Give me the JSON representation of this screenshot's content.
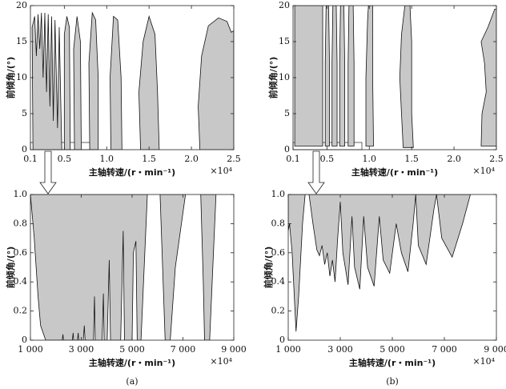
{
  "chart_data": [
    {
      "type": "area",
      "xlabel": "主轴转速/(r・min⁻¹)",
      "ylabel": "前倾角/(°)",
      "scale_label": "×10⁴",
      "color": "#c8c8c8",
      "xlim": [
        0.1,
        2.5
      ],
      "ylim": [
        0,
        20
      ],
      "xticks": [
        0.1,
        0.5,
        {
          "value": 1,
          "label": "1.0"
        },
        1.5,
        {
          "value": 2,
          "label": "2.0"
        },
        2.5
      ],
      "yticks": [
        0,
        5,
        10,
        15,
        20
      ],
      "lobes": [
        {
          "x": [
            0.13,
            0.12,
            0.15,
            0.17,
            0.19,
            0.21,
            0.23,
            0.25,
            0.27,
            0.29,
            0.31,
            0.33,
            0.35,
            0.37,
            0.39,
            0.42,
            0.44,
            0.47
          ],
          "y": [
            0,
            17,
            18.5,
            13,
            18.8,
            14,
            19,
            10,
            19,
            8,
            18.8,
            6,
            18.5,
            4,
            18,
            3,
            17,
            0
          ]
        },
        {
          "x": [
            0.5,
            0.5,
            0.53,
            0.56,
            0.57
          ],
          "y": [
            0,
            16,
            18.5,
            17,
            0
          ]
        },
        {
          "x": [
            0.62,
            0.61,
            0.65,
            0.69,
            0.7
          ],
          "y": [
            0,
            14,
            18.5,
            15,
            0
          ]
        },
        {
          "x": [
            0.8,
            0.79,
            0.83,
            0.87,
            0.9,
            0.9
          ],
          "y": [
            0,
            12,
            19,
            18,
            10,
            0
          ]
        },
        {
          "x": [
            1.05,
            1.04,
            1.08,
            1.13,
            1.17,
            1.18
          ],
          "y": [
            0,
            10,
            18.5,
            18,
            10,
            0
          ]
        },
        {
          "x": [
            1.4,
            1.38,
            1.43,
            1.5,
            1.57,
            1.6,
            1.62
          ],
          "y": [
            0,
            8,
            15,
            18.5,
            16,
            8,
            0
          ]
        },
        {
          "x": [
            2.1,
            2.08,
            2.12,
            2.2,
            2.32,
            2.42,
            2.47,
            2.5,
            2.5
          ],
          "y": [
            0,
            6,
            13,
            17.2,
            18.3,
            17.8,
            16.3,
            16.5,
            0
          ]
        }
      ]
    },
    {
      "type": "area",
      "xlabel": "主轴转速/(r・min⁻¹)",
      "ylabel": "前倾角/(°)",
      "scale_label": "×10⁴",
      "color": "#c8c8c8",
      "xlim": [
        0.1,
        2.5
      ],
      "ylim": [
        0,
        20
      ],
      "xticks": [
        0.1,
        0.5,
        {
          "value": 1,
          "label": "1.0"
        },
        1.5,
        {
          "value": 2,
          "label": "2.0"
        },
        2.5
      ],
      "yticks": [
        0,
        5,
        10,
        15,
        20
      ],
      "lobes": [
        {
          "x": [
            0.12,
            0.12,
            0.45,
            0.45
          ],
          "y": [
            0.5,
            20,
            20,
            0.5
          ]
        },
        {
          "x": [
            0.48,
            0.48,
            0.49,
            0.52,
            0.53,
            0.53
          ],
          "y": [
            0.5,
            12,
            20,
            20,
            12,
            0.5
          ]
        },
        {
          "x": [
            0.56,
            0.56,
            0.57,
            0.61,
            0.62,
            0.62
          ],
          "y": [
            0.5,
            12,
            20,
            20,
            12,
            0.5
          ]
        },
        {
          "x": [
            0.65,
            0.65,
            0.66,
            0.7,
            0.71,
            0.71
          ],
          "y": [
            0.5,
            12,
            20,
            20,
            12,
            0.5
          ]
        },
        {
          "x": [
            0.75,
            0.75,
            0.76,
            0.81,
            0.82,
            0.82
          ],
          "y": [
            0.5,
            12,
            20,
            20,
            12,
            0.5
          ]
        },
        {
          "x": [
            0.96,
            0.96,
            0.98,
            0.99,
            1.04,
            1.04,
            1.05
          ],
          "y": [
            0.5,
            10,
            18,
            20,
            20,
            10,
            0.5
          ]
        },
        {
          "x": [
            1.4,
            1.38,
            1.36,
            1.38,
            1.42,
            1.48,
            1.5,
            1.5,
            1.52
          ],
          "y": [
            0.3,
            5,
            10,
            16,
            20,
            20,
            15,
            5,
            0.3
          ]
        },
        {
          "x": [
            2.32,
            2.33,
            2.38,
            2.36,
            2.32,
            2.4,
            2.48,
            2.5,
            2.5
          ],
          "y": [
            0.5,
            5,
            8,
            12,
            15,
            17,
            19.5,
            19.5,
            0.5
          ]
        }
      ]
    },
    {
      "type": "area",
      "xlabel": "主轴转速/(r・min⁻¹)",
      "ylabel": "前倾角/(°)",
      "scale_label": "×10⁴",
      "caption": "(a)",
      "color": "#c8c8c8",
      "xlim": [
        1000,
        9000
      ],
      "ylim": [
        0,
        1
      ],
      "xticks": [
        {
          "value": 1000,
          "label": "1 000"
        },
        {
          "value": 3000,
          "label": "3 000"
        },
        {
          "value": 5000,
          "label": "5 000"
        },
        {
          "value": 7000,
          "label": "7 000"
        },
        {
          "value": 9000,
          "label": "9 000"
        }
      ],
      "yticks": [
        0,
        0.2,
        0.4,
        0.6,
        0.8,
        {
          "value": 1,
          "label": "1.0"
        }
      ],
      "lobes": [
        {
          "x": [
            1000,
            5600,
            5500,
            5350,
            5200,
            5150,
            5050,
            5000,
            4700,
            4650,
            4550,
            4150,
            4100,
            4020,
            3900,
            3870,
            3820,
            3550,
            3520,
            3480,
            3150,
            3120,
            3080,
            2900,
            2880,
            2850,
            2700,
            2680,
            2650,
            2300,
            2280,
            2250,
            1600,
            1400,
            1300,
            1150
          ],
          "y": [
            1,
            1,
            0.6,
            0,
            0,
            0.68,
            0.6,
            0,
            0,
            0.75,
            0,
            0,
            0.55,
            0,
            0,
            0.32,
            0,
            0,
            0.3,
            0,
            0,
            0.1,
            0,
            0,
            0.05,
            0,
            0,
            0.05,
            0,
            0,
            0.04,
            0,
            0,
            0.1,
            0.3,
            0.7
          ]
        },
        {
          "x": [
            6100,
            6200,
            6300,
            6500,
            6700,
            7100
          ],
          "y": [
            1,
            0.5,
            0,
            0,
            0.5,
            1
          ]
        },
        {
          "x": [
            7700,
            7800,
            7850,
            8050,
            8150,
            8300
          ],
          "y": [
            1,
            0.4,
            0,
            0,
            0.4,
            1
          ]
        }
      ]
    },
    {
      "type": "area",
      "xlabel": "主轴转速/(r・min⁻¹)",
      "ylabel": "前倾角/(°)",
      "scale_label": "×10⁴",
      "caption": "(b)",
      "color": "#c8c8c8",
      "xlim": [
        1000,
        9000
      ],
      "ylim": [
        0,
        1
      ],
      "xticks": [
        {
          "value": 1000,
          "label": "1 000"
        },
        {
          "value": 3000,
          "label": "3 000"
        },
        {
          "value": 5000,
          "label": "5 000"
        },
        {
          "value": 7000,
          "label": "7 000"
        },
        {
          "value": 9000,
          "label": "9 000"
        }
      ],
      "yticks": [
        0,
        0.2,
        0.4,
        0.6,
        0.8,
        {
          "value": 1,
          "label": "1.0"
        }
      ],
      "lobes": [
        {
          "x": [
            1000,
            1000,
            1050,
            1150,
            1300,
            1400,
            1550,
            1650,
            1800,
            1950,
            2100,
            2200,
            2300,
            2400,
            2500,
            2600,
            2700,
            2800,
            2900,
            3000,
            3100,
            3300,
            3450,
            3550,
            3750,
            3900,
            4050,
            4300,
            4500,
            4650,
            4900,
            5150,
            5350,
            5600,
            5800,
            5900,
            6000,
            6300,
            6600,
            6700,
            6900,
            7300,
            7700,
            8000
          ],
          "y": [
            1,
            0.75,
            0.8,
            0.6,
            0.06,
            0.3,
            0.8,
            1,
            1,
            0.8,
            0.62,
            0.58,
            0.65,
            0.52,
            0.6,
            0.44,
            0.55,
            0.4,
            0.7,
            0.95,
            0.6,
            0.38,
            0.85,
            0.5,
            0.35,
            0.85,
            0.5,
            0.37,
            0.85,
            0.55,
            0.46,
            0.8,
            0.6,
            0.47,
            0.8,
            1,
            0.65,
            0.52,
            0.9,
            1,
            0.7,
            0.57,
            0.8,
            1
          ]
        }
      ]
    }
  ]
}
